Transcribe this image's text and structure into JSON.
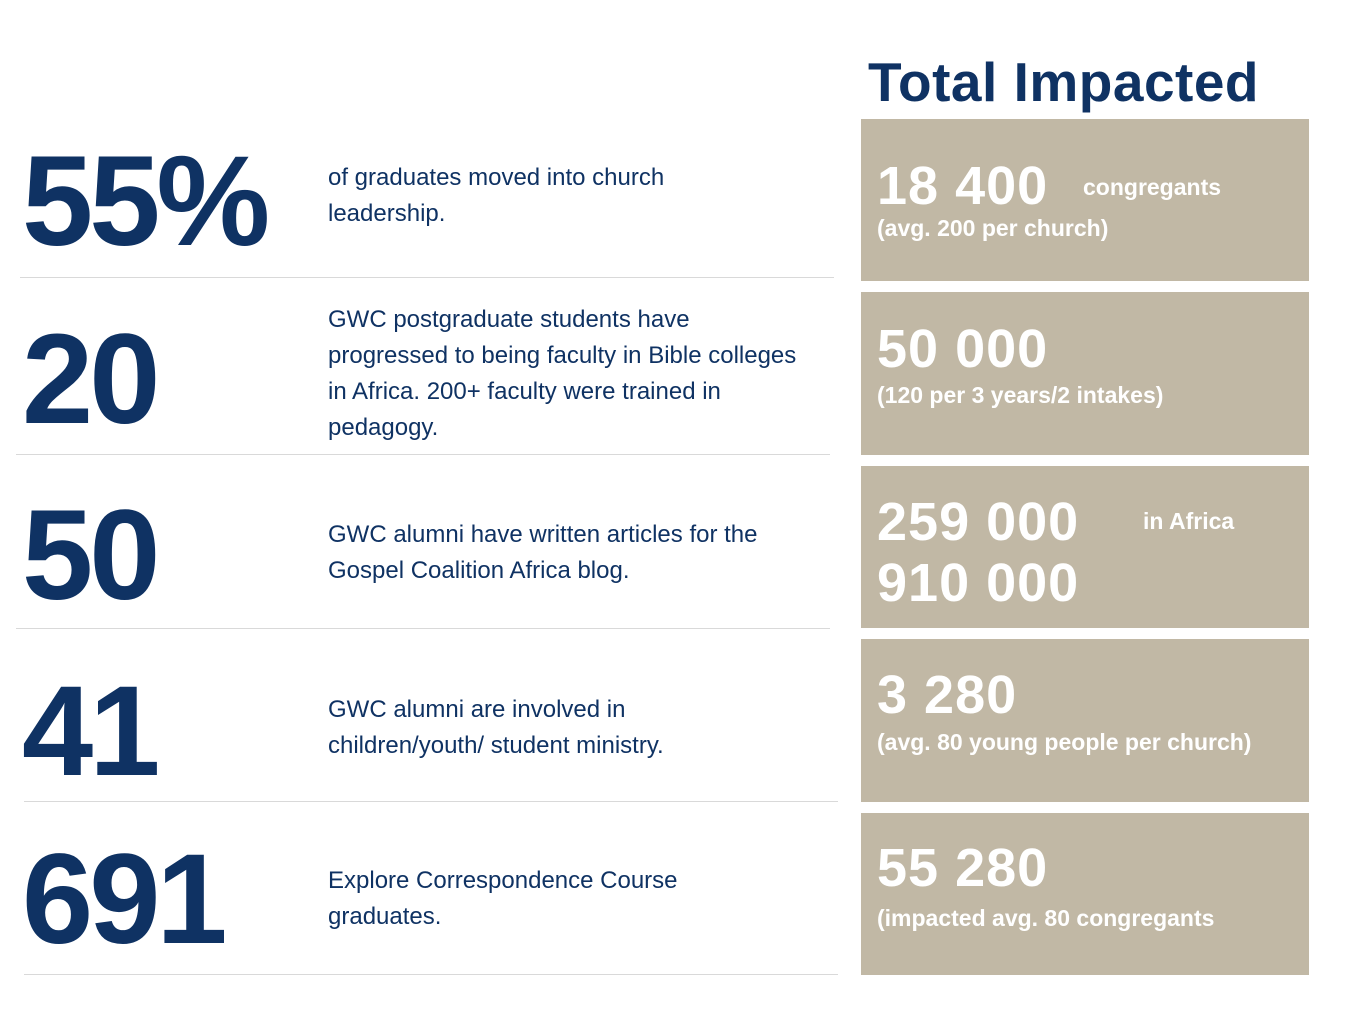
{
  "title": "Total Impacted",
  "stats": [
    {
      "number": "55%",
      "description": "of graduates moved into church leadership."
    },
    {
      "number": "20",
      "description": "GWC postgraduate students have progressed to being faculty in Bible colleges in Africa. 200+ faculty were trained in pedagogy."
    },
    {
      "number": "50",
      "description": "GWC alumni have written articles for the Gospel Coalition Africa blog."
    },
    {
      "number": "41",
      "description": "GWC alumni are involved in children/youth/ student ministry."
    },
    {
      "number": "691",
      "description": "Explore Correspondence Course graduates."
    }
  ],
  "impact": [
    {
      "value": "18 400",
      "suffix": "congregants",
      "note": "(avg. 200 per church)"
    },
    {
      "value": "50 000",
      "note": "(120 per 3 years/2 intakes)"
    },
    {
      "value": "259 000",
      "suffix": "in Africa",
      "value2": "910 000"
    },
    {
      "value": "3 280",
      "note": "(avg. 80 young people per church)"
    },
    {
      "value": "55 280",
      "note": "(impacted avg. 80 congregants"
    }
  ],
  "colors": {
    "navy": "#0f3263",
    "tan": "#c1b8a5",
    "divider": "#d9d9d9"
  }
}
